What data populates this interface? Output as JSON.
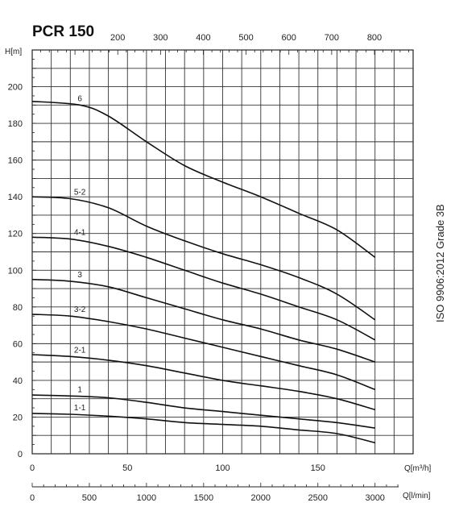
{
  "chart_data": {
    "type": "line",
    "title": "PCR 150",
    "ylabel": "H[m]",
    "xlabel": "Q[m³/h]",
    "x2label": "Q[l/min]",
    "side_text": "ISO  9906:2012   Grade 3B",
    "xlim": [
      0,
      200
    ],
    "ylim": [
      0,
      220
    ],
    "x_ticks": [
      0,
      50,
      100,
      150
    ],
    "y_ticks": [
      0,
      20,
      40,
      60,
      80,
      100,
      120,
      140,
      160,
      180,
      200
    ],
    "bottom2_ticks": [
      0,
      500,
      1000,
      1500,
      2000,
      2500,
      3000
    ],
    "top_ticks": [
      200,
      300,
      400,
      500,
      600,
      700,
      800
    ],
    "grid": true,
    "series": [
      {
        "name": "6",
        "x": [
          0,
          25,
          40,
          60,
          80,
          100,
          120,
          140,
          160,
          180
        ],
        "y": [
          192,
          190,
          184,
          170,
          157,
          148,
          140,
          131,
          122,
          107
        ]
      },
      {
        "name": "5-2",
        "x": [
          0,
          20,
          40,
          60,
          80,
          100,
          120,
          140,
          160,
          180
        ],
        "y": [
          140,
          139,
          134,
          124,
          116,
          109,
          103,
          96,
          87,
          73
        ]
      },
      {
        "name": "4-1",
        "x": [
          0,
          20,
          40,
          60,
          80,
          100,
          120,
          140,
          160,
          180
        ],
        "y": [
          118,
          117,
          113,
          107,
          100,
          93,
          87,
          80,
          73,
          62
        ]
      },
      {
        "name": "3",
        "x": [
          0,
          20,
          40,
          60,
          80,
          100,
          120,
          140,
          160,
          180
        ],
        "y": [
          95,
          94,
          91,
          85,
          79,
          73,
          68,
          62,
          57,
          50
        ]
      },
      {
        "name": "3-2",
        "x": [
          0,
          20,
          40,
          60,
          80,
          100,
          120,
          140,
          160,
          180
        ],
        "y": [
          76,
          75,
          72,
          68,
          63,
          58,
          53,
          48,
          43,
          35
        ]
      },
      {
        "name": "2-1",
        "x": [
          0,
          20,
          40,
          60,
          80,
          100,
          120,
          140,
          160,
          180
        ],
        "y": [
          54,
          53,
          51,
          48,
          44,
          40,
          37,
          34,
          30,
          24
        ]
      },
      {
        "name": "1",
        "x": [
          0,
          20,
          40,
          60,
          80,
          100,
          120,
          140,
          160,
          180
        ],
        "y": [
          32,
          31.5,
          30.5,
          28,
          25,
          23,
          21,
          19,
          17,
          14
        ]
      },
      {
        "name": "1-1",
        "x": [
          0,
          20,
          40,
          60,
          80,
          100,
          120,
          140,
          160,
          180
        ],
        "y": [
          22,
          21.5,
          20.5,
          19,
          17,
          16,
          15,
          13,
          11,
          6
        ]
      }
    ]
  }
}
